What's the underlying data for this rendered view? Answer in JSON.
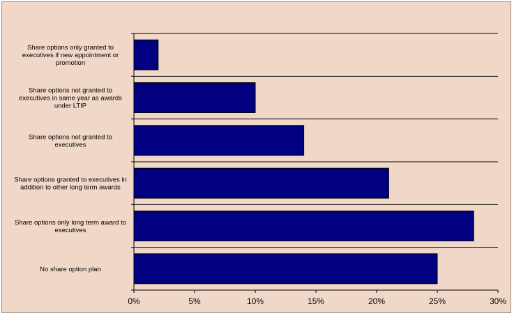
{
  "chart_data": {
    "type": "bar",
    "orientation": "horizontal",
    "title": "",
    "xlabel": "",
    "ylabel": "",
    "categories": [
      [
        "Share options only granted to",
        "executives if new appointment or",
        "promotion"
      ],
      [
        "Share options not granted to",
        "executives in same year as awards",
        "under LTIP"
      ],
      [
        "Share options not granted to",
        "executives"
      ],
      [
        "Share options granted to executives in",
        "addition to other long term awards"
      ],
      [
        "Share options only long term award to",
        "executives"
      ],
      [
        "No share option plan"
      ]
    ],
    "values": [
      2,
      10,
      14,
      21,
      28,
      25
    ],
    "xlim": [
      0,
      30
    ],
    "x_ticks": [
      0,
      5,
      10,
      15,
      20,
      25,
      30
    ],
    "x_tick_labels": [
      "0%",
      "5%",
      "10%",
      "15%",
      "20%",
      "25%",
      "30%"
    ],
    "grid": "horizontal separators",
    "legend": "none",
    "colors": {
      "bar": "#000080",
      "background": "#f0d7c8",
      "axis": "#000000"
    }
  }
}
